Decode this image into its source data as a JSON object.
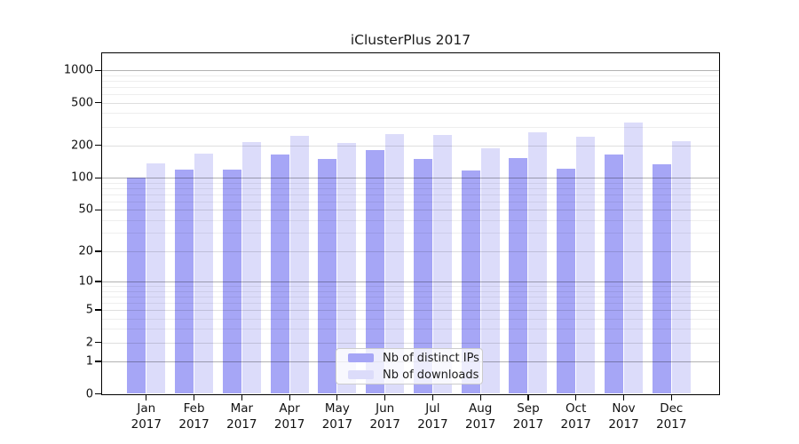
{
  "chart_data": {
    "type": "bar",
    "title": "iClusterPlus 2017",
    "categories": [
      "Jan 2017",
      "Feb 2017",
      "Mar 2017",
      "Apr 2017",
      "May 2017",
      "Jun 2017",
      "Jul 2017",
      "Aug 2017",
      "Sep 2017",
      "Oct 2017",
      "Nov 2017",
      "Dec 2017"
    ],
    "series": [
      {
        "name": "Nb of distinct IPs",
        "color": "#a6a6f6",
        "values": [
          100,
          119,
          119,
          165,
          150,
          182,
          149,
          117,
          153,
          121,
          164,
          133
        ]
      },
      {
        "name": "Nb of downloads",
        "color": "#dcdcfa",
        "values": [
          135,
          168,
          217,
          245,
          213,
          255,
          252,
          187,
          265,
          240,
          325,
          218
        ]
      }
    ],
    "xlabel": "",
    "ylabel": "",
    "yscale": "log10(1+x)",
    "yticks": [
      0,
      1,
      2,
      5,
      10,
      20,
      50,
      100,
      200,
      500,
      1000
    ],
    "ylim": [
      0,
      1440
    ],
    "grid": "horizontal",
    "gridline_minor_steps": [
      3,
      4,
      6,
      7,
      8,
      9
    ],
    "legend_position": "lower-center"
  },
  "colors": {
    "axis": "#000000",
    "major_grid": "#b3b3b3",
    "mid_grid": "#dddddd",
    "minor_grid": "#eeeeee",
    "background": "#ffffff"
  }
}
